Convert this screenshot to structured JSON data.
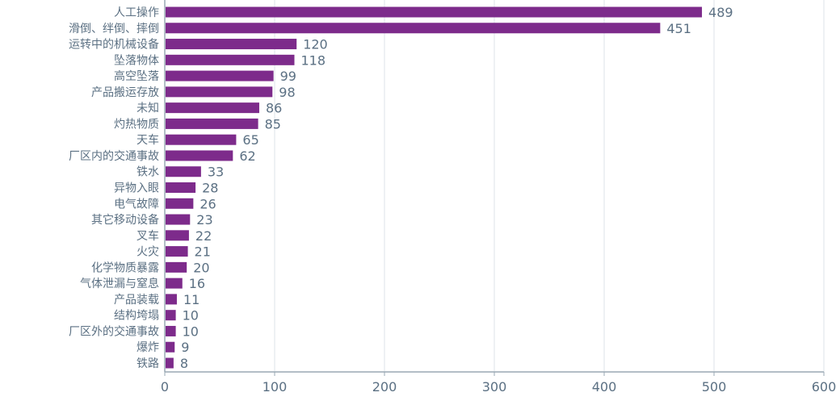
{
  "chart_data": {
    "type": "bar",
    "orientation": "horizontal",
    "title": "",
    "xlabel": "",
    "ylabel": "",
    "categories": [
      "人工操作",
      "滑倒、绊倒、摔倒",
      "运转中的机械设备",
      "坠落物体",
      "高空坠落",
      "产品搬运存放",
      "未知",
      "灼热物质",
      "天车",
      "厂区内的交通事故",
      "铁水",
      "异物入眼",
      "电气故障",
      "其它移动设备",
      "叉车",
      "火灾",
      "化学物质暴露",
      "气体泄漏与窒息",
      "产品装载",
      "结构垮塌",
      "厂区外的交通事故",
      "爆炸",
      "铁路"
    ],
    "values": [
      489,
      451,
      120,
      118,
      99,
      98,
      86,
      85,
      65,
      62,
      33,
      28,
      26,
      23,
      22,
      21,
      20,
      16,
      11,
      10,
      10,
      9,
      8
    ],
    "xlim": [
      0,
      600
    ],
    "xticks": [
      0,
      100,
      200,
      300,
      400,
      500,
      600
    ],
    "grid": true,
    "data_labels": true,
    "colors": {
      "bar": "#7d2b8b",
      "text": "#5b7083",
      "grid": "#dde3e8",
      "axis": "#9aa8b4"
    }
  }
}
